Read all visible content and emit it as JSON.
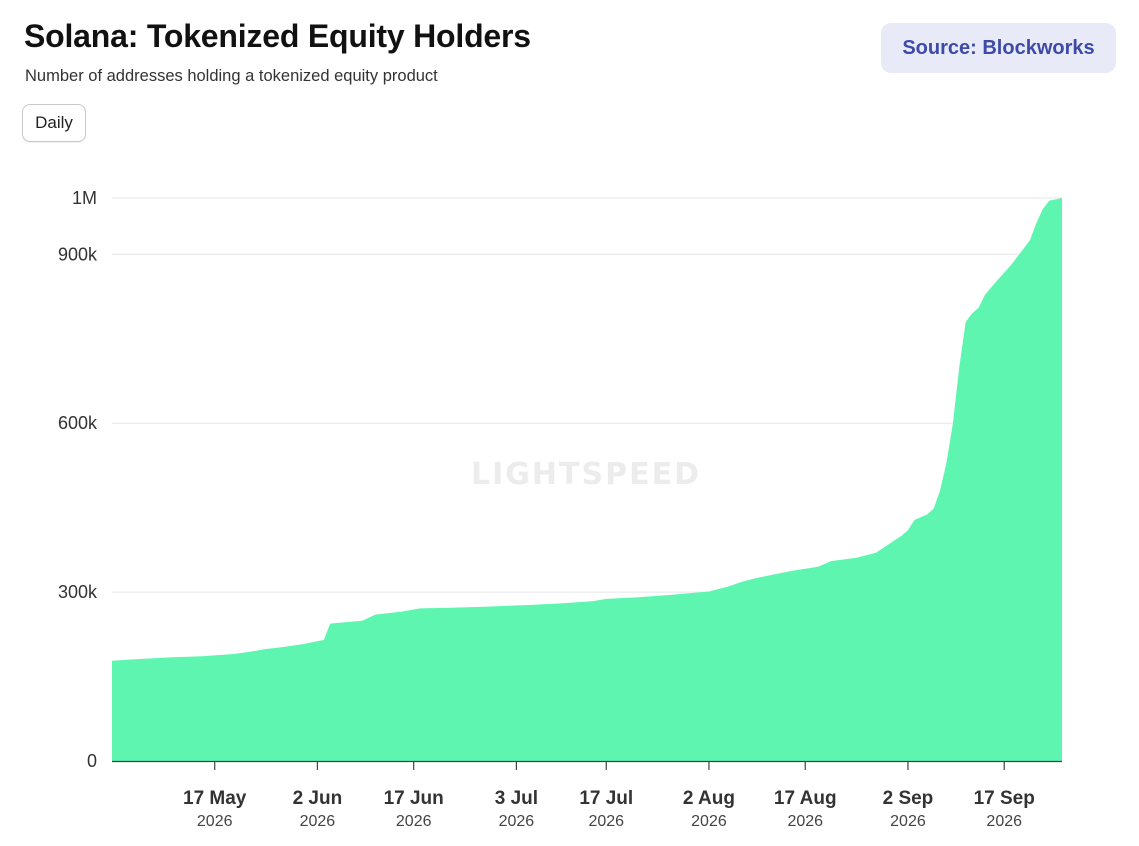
{
  "header": {
    "title": "Solana: Tokenized Equity Holders",
    "subtitle": "Number of addresses holding a tokenized equity product",
    "source_label": "Source: Blockworks"
  },
  "controls": {
    "interval_label": "Daily"
  },
  "watermark": "LIGHTSPEED",
  "colors": {
    "area_fill": "#5ef5b1",
    "gridline": "#e6e6e6",
    "source_badge_bg": "#e8eaf7",
    "source_text": "#3d4aa8"
  },
  "chart_data": {
    "type": "area",
    "title": "Solana: Tokenized Equity Holders",
    "subtitle": "Number of addresses holding a tokenized equity product",
    "xlabel": "",
    "ylabel": "",
    "ylim": [
      0,
      1000000
    ],
    "xlim": [
      "2026-05-01",
      "2026-09-26"
    ],
    "y_ticks": [
      {
        "value": 0,
        "label": "0"
      },
      {
        "value": 300000,
        "label": "300k"
      },
      {
        "value": 600000,
        "label": "600k"
      },
      {
        "value": 900000,
        "label": "900k"
      },
      {
        "value": 1000000,
        "label": "1M"
      }
    ],
    "x_ticks": [
      {
        "date": "2026-05-17",
        "label": "17 May",
        "year": "2026"
      },
      {
        "date": "2026-06-02",
        "label": "2 Jun",
        "year": "2026"
      },
      {
        "date": "2026-06-17",
        "label": "17 Jun",
        "year": "2026"
      },
      {
        "date": "2026-07-03",
        "label": "3 Jul",
        "year": "2026"
      },
      {
        "date": "2026-07-17",
        "label": "17 Jul",
        "year": "2026"
      },
      {
        "date": "2026-08-02",
        "label": "2 Aug",
        "year": "2026"
      },
      {
        "date": "2026-08-17",
        "label": "17 Aug",
        "year": "2026"
      },
      {
        "date": "2026-09-02",
        "label": "2 Sep",
        "year": "2026"
      },
      {
        "date": "2026-09-17",
        "label": "17 Sep",
        "year": "2026"
      }
    ],
    "grid": true,
    "legend": "none",
    "series": [
      {
        "points": [
          [
            "2026-05-01",
            178000
          ],
          [
            "2026-05-05",
            181000
          ],
          [
            "2026-05-10",
            184000
          ],
          [
            "2026-05-15",
            186000
          ],
          [
            "2026-05-20",
            190000
          ],
          [
            "2026-05-23",
            195000
          ],
          [
            "2026-05-25",
            199000
          ],
          [
            "2026-05-28",
            203000
          ],
          [
            "2026-05-31",
            208000
          ],
          [
            "2026-06-02",
            213000
          ],
          [
            "2026-06-03",
            215000
          ],
          [
            "2026-06-04",
            244000
          ],
          [
            "2026-06-07",
            247000
          ],
          [
            "2026-06-09",
            249000
          ],
          [
            "2026-06-11",
            260000
          ],
          [
            "2026-06-15",
            265000
          ],
          [
            "2026-06-18",
            271000
          ],
          [
            "2026-06-22",
            272000
          ],
          [
            "2026-06-28",
            274000
          ],
          [
            "2026-07-05",
            277000
          ],
          [
            "2026-07-10",
            280000
          ],
          [
            "2026-07-15",
            284000
          ],
          [
            "2026-07-17",
            288000
          ],
          [
            "2026-07-22",
            291000
          ],
          [
            "2026-07-27",
            295000
          ],
          [
            "2026-08-02",
            301000
          ],
          [
            "2026-08-05",
            310000
          ],
          [
            "2026-08-07",
            318000
          ],
          [
            "2026-08-09",
            324000
          ],
          [
            "2026-08-12",
            331000
          ],
          [
            "2026-08-15",
            338000
          ],
          [
            "2026-08-19",
            345000
          ],
          [
            "2026-08-21",
            355000
          ],
          [
            "2026-08-25",
            361000
          ],
          [
            "2026-08-28",
            370000
          ],
          [
            "2026-08-30",
            385000
          ],
          [
            "2026-09-01",
            400000
          ],
          [
            "2026-09-02",
            410000
          ],
          [
            "2026-09-03",
            428000
          ],
          [
            "2026-09-05",
            438000
          ],
          [
            "2026-09-06",
            448000
          ],
          [
            "2026-09-07",
            480000
          ],
          [
            "2026-09-08",
            530000
          ],
          [
            "2026-09-09",
            600000
          ],
          [
            "2026-09-10",
            700000
          ],
          [
            "2026-09-11",
            780000
          ],
          [
            "2026-09-12",
            795000
          ],
          [
            "2026-09-13",
            805000
          ],
          [
            "2026-09-14",
            828000
          ],
          [
            "2026-09-16",
            855000
          ],
          [
            "2026-09-18",
            880000
          ],
          [
            "2026-09-20",
            910000
          ],
          [
            "2026-09-21",
            925000
          ],
          [
            "2026-09-22",
            955000
          ],
          [
            "2026-09-23",
            980000
          ],
          [
            "2026-09-24",
            995000
          ],
          [
            "2026-09-26",
            1000000
          ]
        ]
      }
    ]
  }
}
